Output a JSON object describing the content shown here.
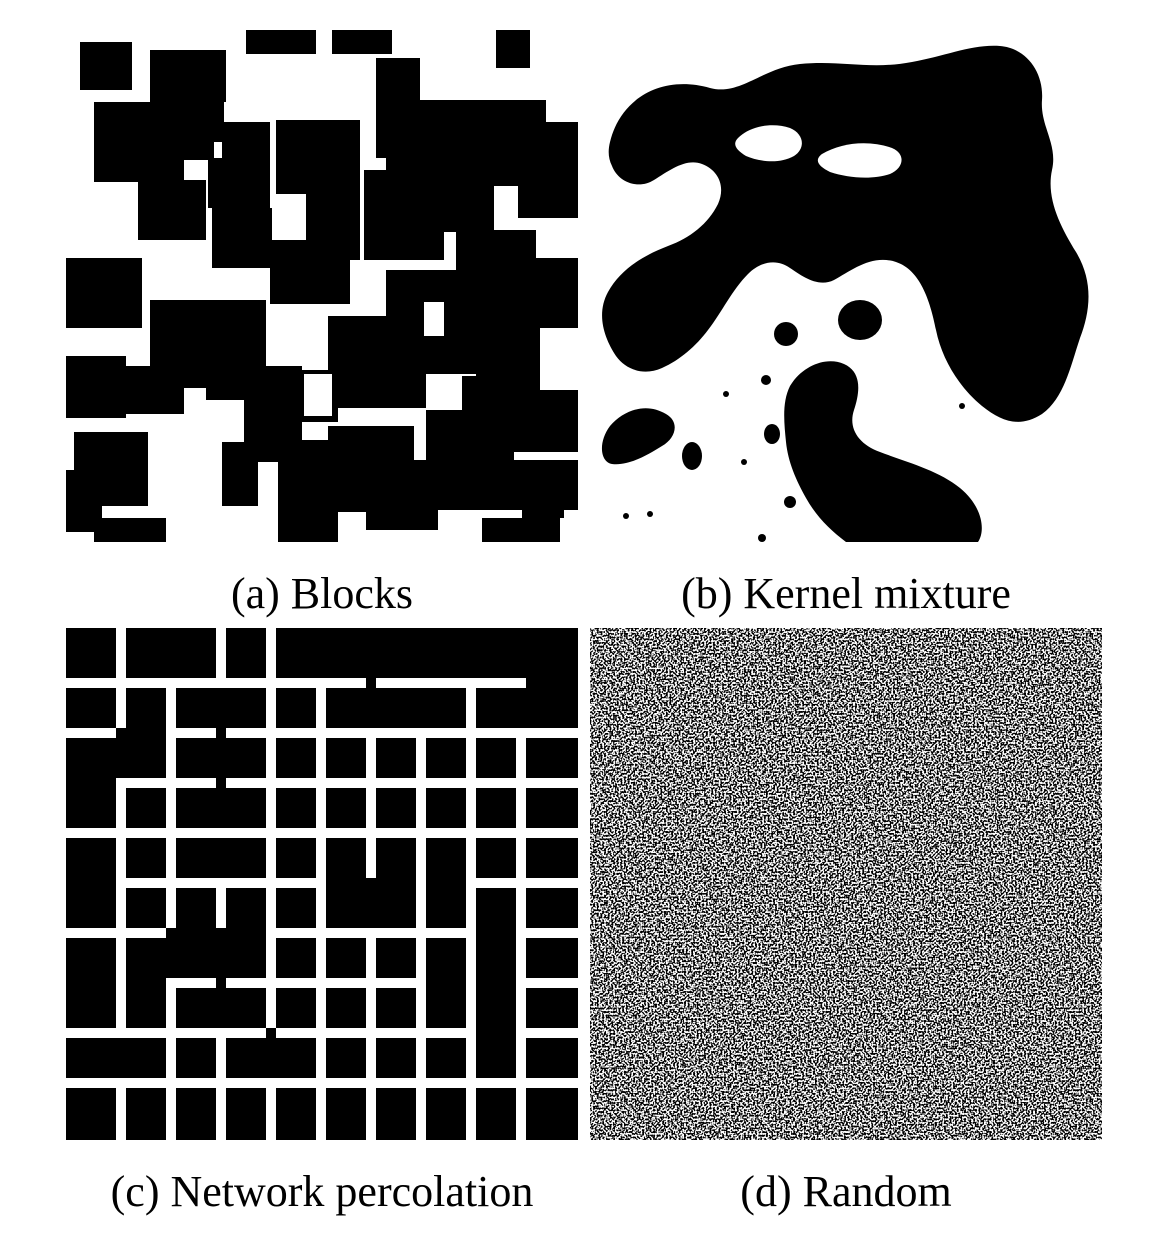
{
  "figure": {
    "panels": [
      {
        "id": "a",
        "caption": "(a) Blocks"
      },
      {
        "id": "b",
        "caption": "(b) Kernel mixture"
      },
      {
        "id": "c",
        "caption": "(c) Network percolation"
      },
      {
        "id": "d",
        "caption": "(d) Random"
      }
    ],
    "colors": {
      "foreground": "#000000",
      "background": "#ffffff"
    }
  }
}
